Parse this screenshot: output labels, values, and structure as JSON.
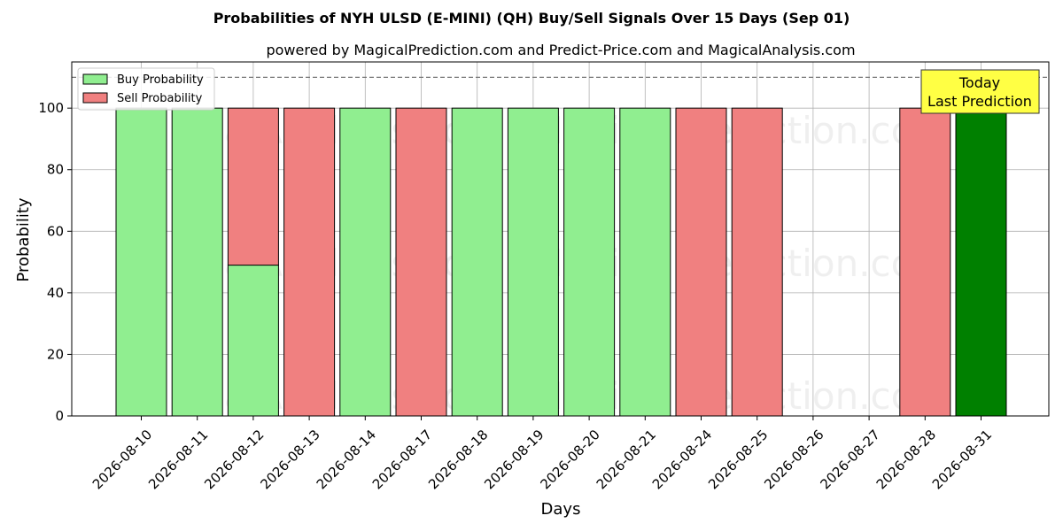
{
  "chart_data": {
    "type": "bar",
    "title": "Probabilities of NYH ULSD (E-MINI) (QH) Buy/Sell Signals Over 15 Days (Sep 01)",
    "subtitle": "powered by MagicalPrediction.com and Predict-Price.com and MagicalAnalysis.com",
    "xlabel": "Days",
    "ylabel": "Probability",
    "ylim": [
      0,
      115
    ],
    "yticks": [
      0,
      20,
      40,
      60,
      80,
      100
    ],
    "grid": true,
    "legend_position": "top-left",
    "reference_line": 110,
    "categories": [
      "2026-08-10",
      "2026-08-11",
      "2026-08-12",
      "2026-08-13",
      "2026-08-14",
      "2026-08-17",
      "2026-08-18",
      "2026-08-19",
      "2026-08-20",
      "2026-08-21",
      "2026-08-24",
      "2026-08-25",
      "2026-08-26",
      "2026-08-27",
      "2026-08-28",
      "2026-08-31"
    ],
    "series": [
      {
        "name": "Buy Probability",
        "color": "#90ee90",
        "values": [
          100,
          100,
          49,
          0,
          100,
          0,
          100,
          100,
          100,
          100,
          0,
          0,
          0,
          0,
          0,
          100
        ]
      },
      {
        "name": "Sell Probability",
        "color": "#f08080",
        "values": [
          0,
          0,
          51,
          100,
          0,
          100,
          0,
          0,
          0,
          0,
          100,
          100,
          0,
          0,
          100,
          0
        ]
      }
    ],
    "highlight": {
      "index": 15,
      "color": "#008000"
    },
    "annotation": {
      "lines": [
        "Today",
        "Last Prediction"
      ],
      "color": "#ffff44"
    },
    "watermarks": [
      "MagicalAnalysis.com",
      "MagicalPrediction.com"
    ]
  }
}
